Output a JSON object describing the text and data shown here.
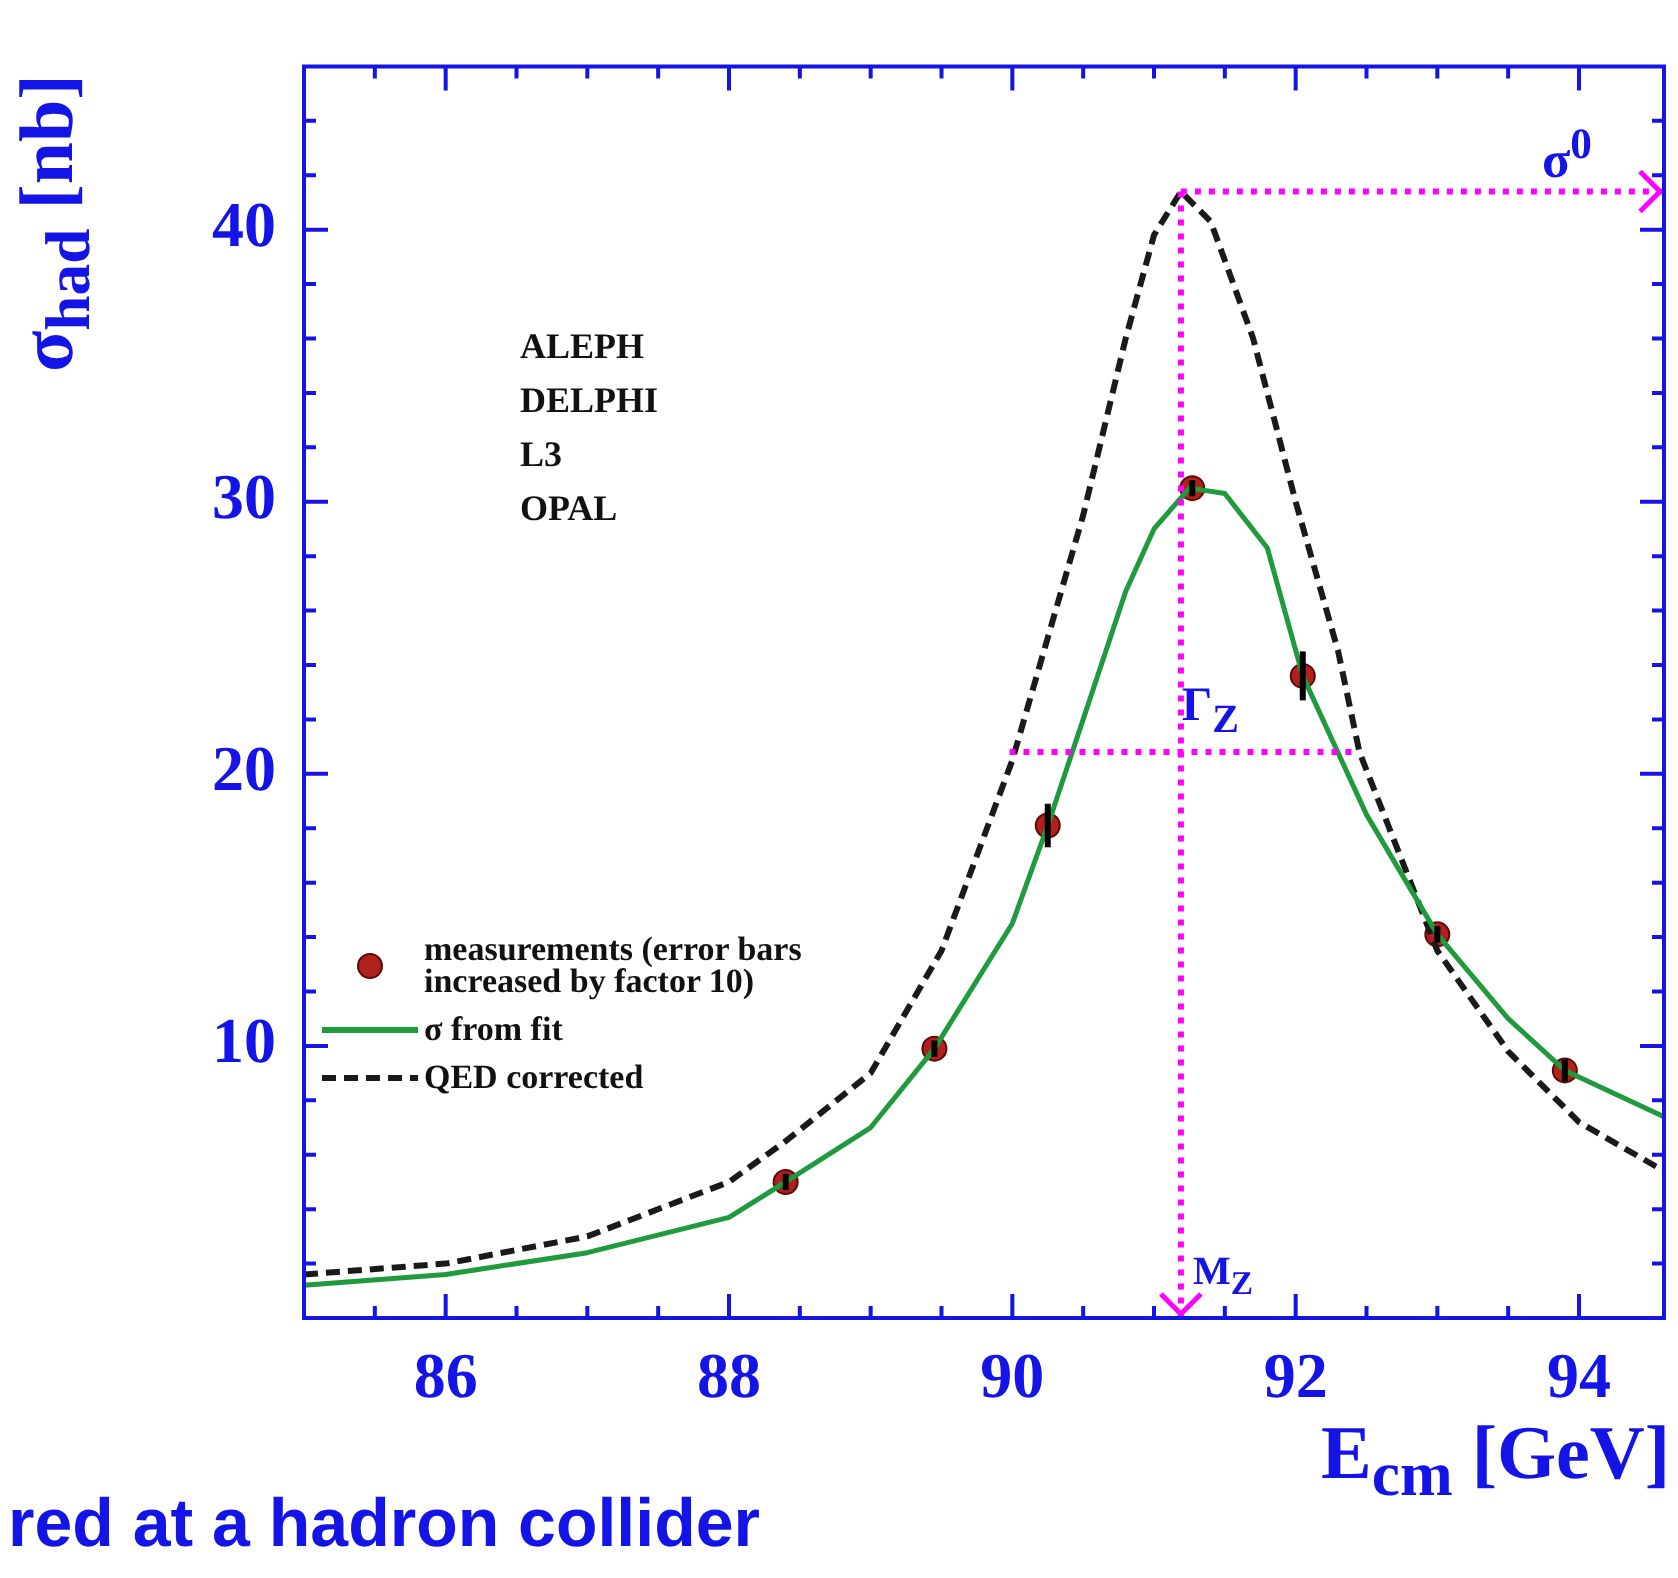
{
  "chart_data": {
    "type": "line",
    "title": "red at a hadron collider",
    "xlabel": "E$_{cm}$ [GeV]",
    "ylabel": "σ$_{had}$ [nb]",
    "xlim": [
      85,
      94.6
    ],
    "ylim": [
      0,
      46
    ],
    "xticks": [
      {
        "value": 85.5,
        "label": null
      },
      86,
      {
        "value": 86.5,
        "label": null
      },
      {
        "value": 87,
        "label": null
      },
      {
        "value": 87.5,
        "label": null
      },
      88,
      {
        "value": 88.5,
        "label": null
      },
      {
        "value": 89,
        "label": null
      },
      {
        "value": 89.5,
        "label": null
      },
      90,
      {
        "value": 90.5,
        "label": null
      },
      {
        "value": 91,
        "label": null
      },
      {
        "value": 91.5,
        "label": null
      },
      92,
      {
        "value": 92.5,
        "label": null
      },
      {
        "value": 93,
        "label": null
      },
      {
        "value": 93.5,
        "label": null
      },
      94
    ],
    "yticks": [
      {
        "value": 2,
        "label": null
      },
      {
        "value": 4,
        "label": null
      },
      {
        "value": 6,
        "label": null
      },
      {
        "value": 8,
        "label": null
      },
      10,
      {
        "value": 12,
        "label": null
      },
      {
        "value": 14,
        "label": null
      },
      {
        "value": 16,
        "label": null
      },
      {
        "value": 18,
        "label": null
      },
      20,
      {
        "value": 22,
        "label": null
      },
      {
        "value": 24,
        "label": null
      },
      {
        "value": 26,
        "label": null
      },
      {
        "value": 28,
        "label": null
      },
      30,
      {
        "value": 32,
        "label": null
      },
      {
        "value": 34,
        "label": null
      },
      {
        "value": 36,
        "label": null
      },
      {
        "value": 38,
        "label": null
      },
      40,
      {
        "value": 42,
        "label": null
      },
      {
        "value": 44,
        "label": null
      }
    ],
    "grid": false,
    "legend": "left",
    "annotations": [
      "ALEPH",
      "DELPHI",
      "L3",
      "OPAL",
      {
        "text": "Γ$_{Z}$",
        "x": 91.4,
        "y": 20.8
      }
    ],
    "ref_lines": [
      {
        "axis": "x",
        "value": 91.19,
        "label": "M$_{Z}$",
        "color": "#ff00ff",
        "line_style": "dotted"
      },
      {
        "axis": "y",
        "value": 41.4,
        "label": "σ$^{0}$",
        "color": "#ff00ff",
        "line_style": "dotted"
      }
    ],
    "series": [
      {
        "type": "line",
        "color": "#ff00ff",
        "line_style": "dotted",
        "marker": "none",
        "x": [
          89.98,
          92.45
        ],
        "values": [
          20.8,
          20.8
        ]
      },
      {
        "name": "σ from fit",
        "type": "line",
        "color": "#1f9a3c",
        "line_style": "solid",
        "marker": "none",
        "x": [
          85,
          86,
          87,
          88,
          88.4,
          89,
          89.45,
          90,
          90.25,
          90.5,
          90.8,
          91,
          91.25,
          91.5,
          91.8,
          92.05,
          92.5,
          93,
          93.5,
          93.9,
          94.6
        ],
        "values": [
          1.2,
          1.6,
          2.4,
          3.7,
          5,
          7,
          9.9,
          14.5,
          18.1,
          22,
          26.7,
          29,
          30.5,
          30.3,
          28.3,
          23.6,
          18.5,
          14.1,
          11,
          9.1,
          7.4
        ]
      },
      {
        "name": "QED corrected",
        "type": "line",
        "color": "#1a1a1a",
        "line_style": "dashed",
        "marker": "none",
        "x": [
          85,
          86,
          87,
          88,
          88.4,
          89,
          89.5,
          90,
          90.5,
          90.8,
          91,
          91.19,
          91.4,
          91.7,
          92,
          92.3,
          92.45,
          93,
          93.5,
          94,
          94.6
        ],
        "values": [
          1.6,
          2,
          3,
          5,
          6.5,
          9,
          13.5,
          20.5,
          29.5,
          36,
          39.8,
          41.4,
          40.3,
          36,
          30,
          24.5,
          20.8,
          13.5,
          9.8,
          7.2,
          5.4
        ]
      },
      {
        "name": "measurements (error bars increased by factor 10)",
        "type": "scatter",
        "color": "#b0201c",
        "marker": "circle",
        "x": [
          88.4,
          89.45,
          90.25,
          91.27,
          92.05,
          93,
          93.9
        ],
        "values": [
          5,
          9.9,
          18.1,
          30.5,
          23.6,
          14.1,
          9.1
        ],
        "errors": [
          0.3,
          0.3,
          0.8,
          0.3,
          0.9,
          0.3,
          0.4
        ]
      }
    ]
  }
}
